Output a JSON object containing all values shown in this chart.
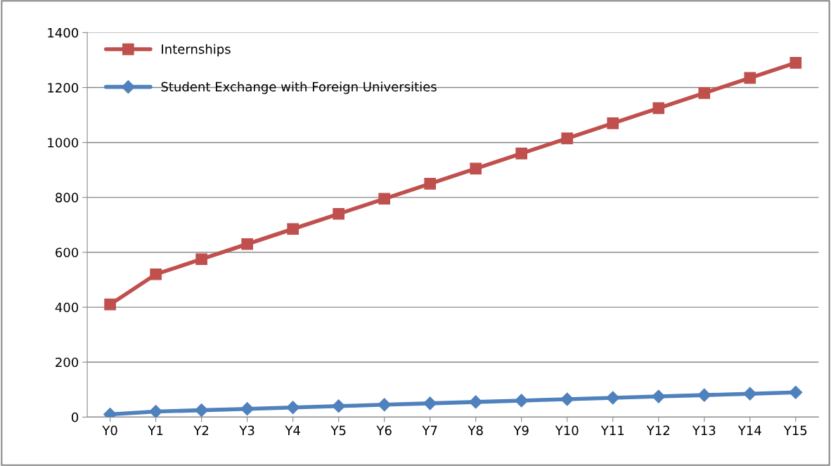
{
  "chart_data": {
    "type": "line",
    "categories": [
      "Y0",
      "Y1",
      "Y2",
      "Y3",
      "Y4",
      "Y5",
      "Y6",
      "Y7",
      "Y8",
      "Y9",
      "Y10",
      "Y11",
      "Y12",
      "Y13",
      "Y14",
      "Y15"
    ],
    "series": [
      {
        "name": "Internships",
        "color": "#c0504d",
        "marker": "square",
        "values": [
          410,
          520,
          575,
          630,
          685,
          740,
          795,
          850,
          905,
          960,
          1015,
          1070,
          1125,
          1180,
          1235,
          1290
        ]
      },
      {
        "name": "Student Exchange with Foreign Universities",
        "color": "#4f81bd",
        "marker": "diamond",
        "values": [
          10,
          20,
          25,
          30,
          35,
          40,
          45,
          50,
          55,
          60,
          65,
          70,
          75,
          80,
          85,
          90
        ]
      }
    ],
    "ylim": [
      0,
      1400
    ],
    "yticks": [
      0,
      200,
      400,
      600,
      800,
      1000,
      1200,
      1400
    ],
    "grid": "y",
    "legend": "top left",
    "line_style": "solid"
  }
}
